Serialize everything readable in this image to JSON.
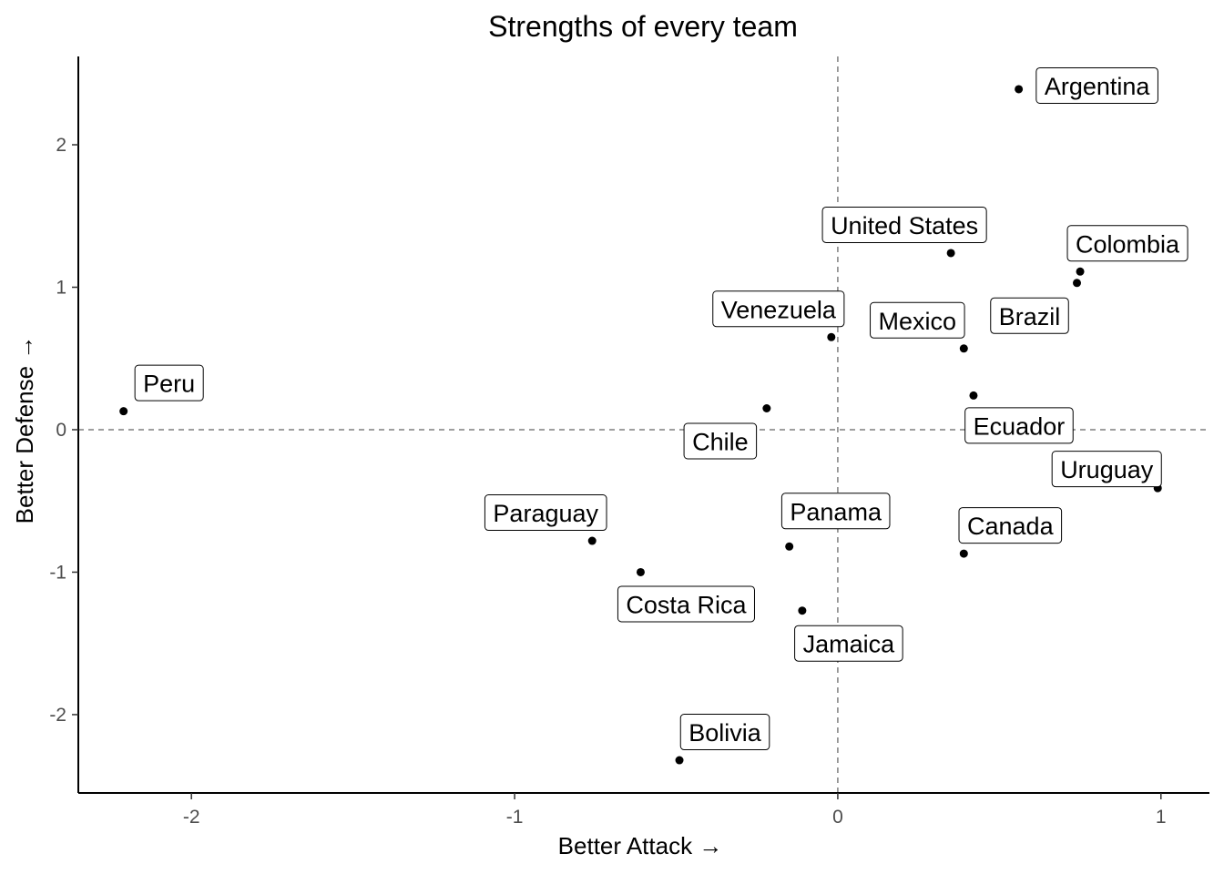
{
  "chart_data": {
    "type": "scatter",
    "title": "Strengths of every team",
    "xlabel": "Better Attack →",
    "ylabel": "Better Defense →",
    "xlim": [
      -2.35,
      1.15
    ],
    "ylim": [
      -2.55,
      2.62
    ],
    "x_ticks": [
      -2,
      -1,
      0,
      1
    ],
    "y_ticks": [
      -2,
      -1,
      0,
      1,
      2
    ],
    "reference_lines": {
      "x": 0,
      "y": 0,
      "style": "dashed"
    },
    "grid": false,
    "legend": "none",
    "point_color": "#000000",
    "points": [
      {
        "label": "Argentina",
        "x": 0.56,
        "y": 2.39
      },
      {
        "label": "United States",
        "x": 0.35,
        "y": 1.24
      },
      {
        "label": "Colombia",
        "x": 0.75,
        "y": 1.11
      },
      {
        "label": "Brazil",
        "x": 0.74,
        "y": 1.03
      },
      {
        "label": "Venezuela",
        "x": -0.02,
        "y": 0.65
      },
      {
        "label": "Mexico",
        "x": 0.39,
        "y": 0.57
      },
      {
        "label": "Ecuador",
        "x": 0.42,
        "y": 0.24
      },
      {
        "label": "Peru",
        "x": -2.21,
        "y": 0.13
      },
      {
        "label": "Chile",
        "x": -0.22,
        "y": 0.15
      },
      {
        "label": "Uruguay",
        "x": 0.99,
        "y": -0.41
      },
      {
        "label": "Paraguay",
        "x": -0.76,
        "y": -0.78
      },
      {
        "label": "Panama",
        "x": -0.15,
        "y": -0.82
      },
      {
        "label": "Canada",
        "x": 0.39,
        "y": -0.87
      },
      {
        "label": "Costa Rica",
        "x": -0.61,
        "y": -1.0
      },
      {
        "label": "Jamaica",
        "x": -0.11,
        "y": -1.27
      },
      {
        "label": "Bolivia",
        "x": -0.49,
        "y": -2.32
      }
    ]
  }
}
